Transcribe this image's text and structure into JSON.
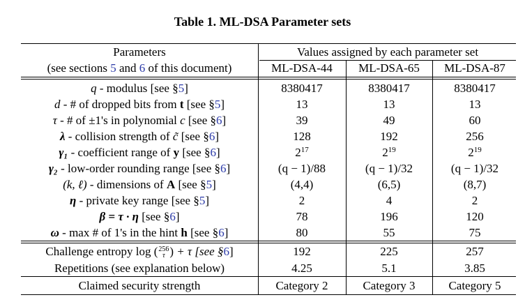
{
  "title": "Table 1. ML-DSA Parameter sets",
  "header": {
    "params_line1": "Parameters",
    "params_line2_a": "(see sections ",
    "params_line2_s5": "5",
    "params_line2_and": " and ",
    "params_line2_s6": "6",
    "params_line2_b": " of this document)",
    "values_title": "Values assigned by each parameter set",
    "sets": [
      "ML-DSA-44",
      "ML-DSA-65",
      "ML-DSA-87"
    ]
  },
  "rows": [
    {
      "sym": "q",
      "desc": " - modulus [see §",
      "ref": "5",
      "tail": "]",
      "values": [
        "8380417",
        "8380417",
        "8380417"
      ]
    },
    {
      "sym": "d",
      "desc": " - # of dropped bits from ",
      "bold": "t",
      "desc2": " [see §",
      "ref": "5",
      "tail": "]",
      "values": [
        "13",
        "13",
        "13"
      ]
    },
    {
      "sym": "τ",
      "desc": " - # of ±1's in polynomial ",
      "ital": "c",
      "desc2": " [see §",
      "ref": "6",
      "tail": "]",
      "values": [
        "39",
        "49",
        "60"
      ]
    },
    {
      "sym": "λ",
      "desc": " - collision strength of ",
      "ital": "c̃",
      "desc2": " [see §",
      "ref": "6",
      "tail": "]",
      "values": [
        "128",
        "192",
        "256"
      ]
    },
    {
      "sym": "γ₁",
      "desc": " - coefficient range of ",
      "bold": "y",
      "desc2": " [see §",
      "ref": "6",
      "tail": "]",
      "values_base": [
        "2",
        "2",
        "2"
      ],
      "values_exp": [
        "17",
        "19",
        "19"
      ]
    },
    {
      "sym": "γ₂",
      "desc": " - low-order rounding range [see §",
      "ref": "6",
      "tail": "]",
      "values": [
        "(q − 1)/88",
        "(q − 1)/32",
        "(q − 1)/32"
      ]
    },
    {
      "sym": "(k, ℓ)",
      "desc": " - dimensions of ",
      "bold": "A",
      "desc2": " [see §",
      "ref": "5",
      "tail": "]",
      "values": [
        "(4,4)",
        "(6,5)",
        "(8,7)"
      ]
    },
    {
      "sym": "η",
      "desc": " - private key range [see §",
      "ref": "5",
      "tail": "]",
      "values": [
        "2",
        "4",
        "2"
      ]
    },
    {
      "sym": "β = τ · η",
      "desc": " [see §",
      "ref": "6",
      "tail": "]",
      "values": [
        "78",
        "196",
        "120"
      ]
    },
    {
      "sym": "ω",
      "desc": " - max # of 1's in the hint ",
      "bold": "h",
      "desc2": " [see §",
      "ref": "6",
      "tail": "]",
      "values": [
        "80",
        "55",
        "75"
      ]
    }
  ],
  "entropy": {
    "pre": "Challenge entropy log ",
    "binom_top": "256",
    "binom_bot": "τ",
    "mid": " + τ [see §",
    "ref": "6",
    "tail": "]",
    "values": [
      "192",
      "225",
      "257"
    ]
  },
  "repetitions": {
    "label": "Repetitions (see explanation below)",
    "values": [
      "4.25",
      "5.1",
      "3.85"
    ]
  },
  "security": {
    "label": "Claimed security strength",
    "values": [
      "Category 2",
      "Category 3",
      "Category 5"
    ]
  }
}
